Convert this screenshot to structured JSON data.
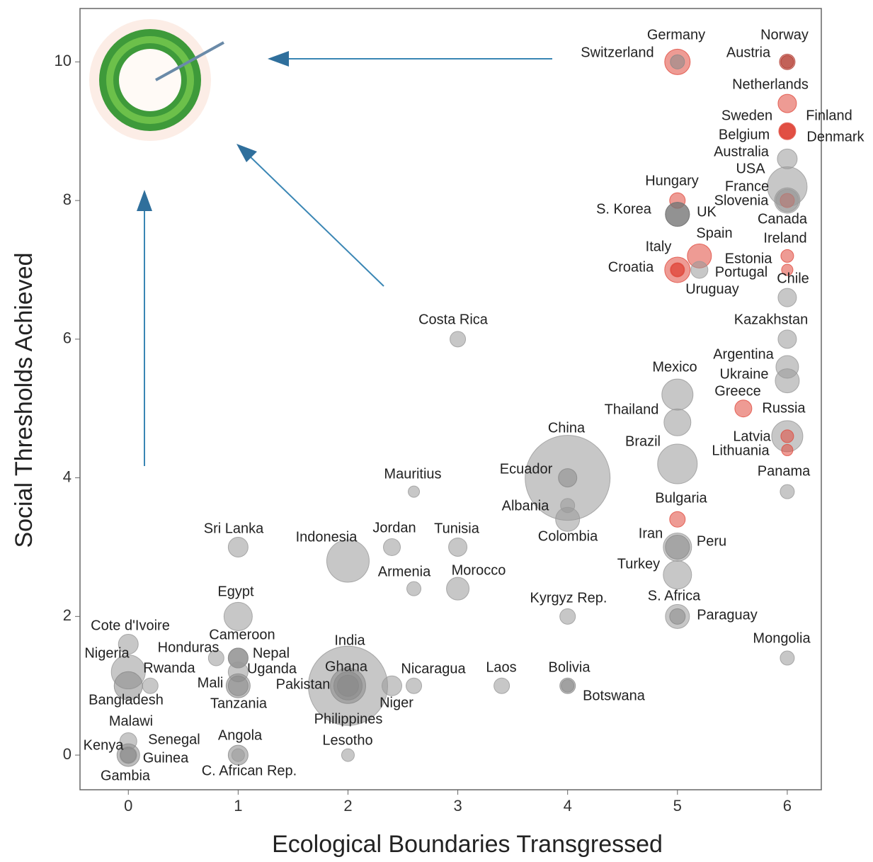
{
  "chart_data": {
    "type": "scatter",
    "xlabel": "Ecological Boundaries Transgressed",
    "ylabel": "Social Thresholds Achieved",
    "xlim": [
      -0.44,
      6.31
    ],
    "ylim": [
      -0.5,
      10.77
    ],
    "xticks": [
      0,
      1,
      2,
      3,
      4,
      5,
      6
    ],
    "yticks": [
      0,
      2,
      4,
      6,
      8,
      10
    ],
    "labels": [
      "Germany",
      "Switzerland",
      "Norway",
      "Austria",
      "Netherlands",
      "Sweden",
      "Finland",
      "Belgium",
      "Denmark",
      "Australia",
      "USA",
      "France",
      "Slovenia",
      "Canada",
      "Hungary",
      "S. Korea",
      "UK",
      "Spain",
      "Italy",
      "Croatia",
      "Estonia",
      "Ireland",
      "Portugal",
      "Uruguay",
      "Chile",
      "Kazakhstan",
      "Argentina",
      "Ukraine",
      "Greece",
      "Russia",
      "Latvia",
      "Lithuania",
      "Panama",
      "Mexico",
      "Thailand",
      "Brazil",
      "Bulgaria",
      "Iran",
      "Peru",
      "Turkey",
      "S. Africa",
      "Paraguay",
      "Mongolia",
      "China",
      "Ecuador",
      "Albania",
      "Colombia",
      "Kyrgyz Rep.",
      "Bolivia",
      "Botswana",
      "Costa Rica",
      "Mauritius",
      "Jordan",
      "Tunisia",
      "Morocco",
      "Armenia",
      "Indonesia",
      "Sri Lanka",
      "Egypt",
      "Laos",
      "Nicaragua",
      "India",
      "Ghana",
      "Pakistan",
      "Niger",
      "Philippines",
      "Lesotho",
      "Cameroon",
      "Honduras",
      "Nepal",
      "Uganda",
      "Mali",
      "Tanzania",
      "Angola",
      "C. African Rep.",
      "Cote d'Ivoire",
      "Nigeria",
      "Rwanda",
      "Bangladesh",
      "Malawi",
      "Kenya",
      "Senegal",
      "Guinea",
      "Gambia"
    ],
    "x": [
      5,
      5,
      6,
      6,
      6,
      6,
      6,
      6,
      6,
      6,
      6,
      6,
      6,
      6,
      5,
      5,
      5,
      5.2,
      5,
      5,
      6,
      6,
      5.2,
      5,
      6,
      6,
      6,
      6,
      5.6,
      6,
      6,
      6,
      6,
      5,
      5,
      5,
      5,
      5,
      5,
      5,
      5,
      5,
      6,
      4,
      4,
      4,
      4,
      4,
      4,
      4,
      3,
      2.6,
      2.4,
      3,
      3,
      2.6,
      2,
      1,
      1,
      3.4,
      2.6,
      2,
      2,
      2,
      2.4,
      2,
      2,
      1,
      0.8,
      1,
      1,
      1,
      1,
      1,
      1,
      0,
      0,
      0.2,
      0,
      0,
      0,
      0,
      0,
      0
    ],
    "values": [
      10,
      10,
      10,
      10,
      9.4,
      9,
      9,
      9,
      9,
      8.6,
      8.2,
      8,
      8,
      8,
      8,
      7.8,
      7.8,
      7.2,
      7,
      7,
      7,
      7.2,
      7,
      7,
      6.6,
      6,
      5.6,
      5.4,
      5,
      4.6,
      4.6,
      4.4,
      3.8,
      5.2,
      4.8,
      4.2,
      3.4,
      3,
      3,
      2.6,
      2,
      2,
      1.4,
      4,
      4,
      3.6,
      3.4,
      2,
      1,
      1,
      6,
      3.8,
      3,
      3,
      2.4,
      2.4,
      2.8,
      3,
      2,
      1,
      1,
      1,
      1,
      1,
      1,
      1,
      0,
      1.4,
      1.4,
      1.4,
      1.2,
      1,
      1,
      0,
      0,
      1.6,
      1.2,
      1,
      1,
      0.2,
      0,
      0,
      0,
      0
    ],
    "sizes": [
      18,
      10,
      11,
      9,
      13,
      12,
      11,
      10,
      10,
      14,
      28,
      18,
      10,
      16,
      11,
      17,
      17,
      17,
      18,
      10,
      8,
      9,
      12,
      9,
      13,
      13,
      16,
      17,
      12,
      22,
      9,
      8,
      10,
      22,
      19,
      28,
      11,
      20,
      17,
      20,
      17,
      11,
      10,
      60,
      13,
      10,
      17,
      11,
      11,
      9,
      11,
      8,
      12,
      13,
      16,
      10,
      30,
      14,
      20,
      11,
      11,
      56,
      15,
      25,
      14,
      20,
      9,
      14,
      11,
      14,
      14,
      14,
      17,
      14,
      9,
      14,
      24,
      11,
      20,
      12,
      16,
      12,
      11,
      8
    ],
    "colors": [
      "#e0483c",
      "#888888",
      "#b2382e",
      "#b2382e",
      "#e0483c",
      "#e0483c",
      "#e0483c",
      "#e0483c",
      "#e0483c",
      "#999999",
      "#999999",
      "#999999",
      "#e0483c",
      "#999999",
      "#e0483c",
      "#777777",
      "#777777",
      "#e0483c",
      "#e0483c",
      "#e0483c",
      "#e0483c",
      "#e0483c",
      "#999999",
      "#e0483c",
      "#999999",
      "#999999",
      "#999999",
      "#999999",
      "#e0483c",
      "#999999",
      "#e0483c",
      "#e0483c",
      "#999999",
      "#999999",
      "#999999",
      "#999999",
      "#e0483c",
      "#999999",
      "#888888",
      "#999999",
      "#999999",
      "#888888",
      "#999999",
      "#999999",
      "#888888",
      "#999999",
      "#999999",
      "#999999",
      "#888888",
      "#888888",
      "#999999",
      "#999999",
      "#999999",
      "#999999",
      "#999999",
      "#999999",
      "#999999",
      "#999999",
      "#999999",
      "#999999",
      "#999999",
      "#999999",
      "#888888",
      "#888888",
      "#999999",
      "#888888",
      "#999999",
      "#888888",
      "#999999",
      "#888888",
      "#999999",
      "#888888",
      "#888888",
      "#888888",
      "#999999",
      "#999999",
      "#999999",
      "#999999",
      "#888888",
      "#999999",
      "#888888",
      "#999999",
      "#888888",
      "#999999"
    ]
  }
}
